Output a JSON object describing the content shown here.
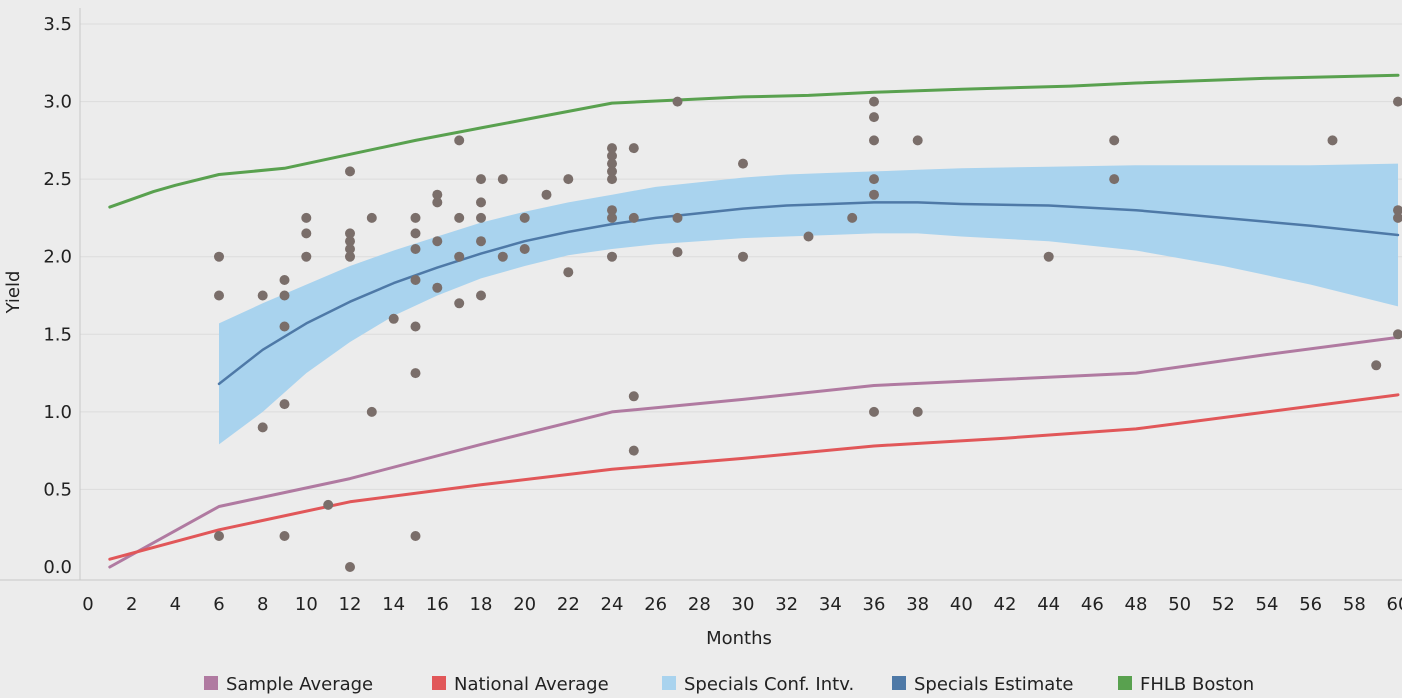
{
  "chart_data": {
    "type": "line",
    "xlabel": "Months",
    "ylabel": "Yield",
    "xlim": [
      0,
      60
    ],
    "ylim": [
      0,
      3.5
    ],
    "x_ticks": [
      "0",
      "2",
      "4",
      "6",
      "8",
      "10",
      "12",
      "14",
      "16",
      "18",
      "20",
      "22",
      "24",
      "26",
      "28",
      "30",
      "32",
      "34",
      "36",
      "38",
      "40",
      "42",
      "44",
      "46",
      "48",
      "50",
      "52",
      "54",
      "56",
      "58",
      "60"
    ],
    "y_ticks": [
      "0.0",
      "0.5",
      "1.0",
      "1.5",
      "2.0",
      "2.5",
      "3.0",
      "3.5"
    ],
    "grid": true,
    "legend_position": "bottom",
    "colors": {
      "sample": "#b07aa1",
      "national": "#e15759",
      "conf": "#a9d3ee",
      "estimate": "#4e79a7",
      "fhlb": "#59a14f",
      "points": "#7a6e6a"
    },
    "legend": [
      {
        "label": "Sample Average",
        "color": "#b07aa1"
      },
      {
        "label": "National Average",
        "color": "#e15759"
      },
      {
        "label": "Specials Conf. Intv.",
        "color": "#a9d3ee"
      },
      {
        "label": "Specials Estimate",
        "color": "#4e79a7"
      },
      {
        "label": "FHLB Boston",
        "color": "#59a14f"
      }
    ],
    "series": [
      {
        "key": "fhlb",
        "x": [
          1,
          3,
          4,
          6,
          9,
          12,
          15,
          18,
          21,
          24,
          27,
          30,
          33,
          36,
          40,
          45,
          48,
          54,
          60
        ],
        "y": [
          2.32,
          2.42,
          2.46,
          2.53,
          2.57,
          2.66,
          2.75,
          2.83,
          2.91,
          2.99,
          3.01,
          3.03,
          3.04,
          3.06,
          3.08,
          3.1,
          3.12,
          3.15,
          3.17
        ]
      },
      {
        "key": "estimate",
        "x": [
          6,
          8,
          10,
          12,
          14,
          16,
          18,
          20,
          22,
          24,
          26,
          28,
          30,
          32,
          34,
          36,
          38,
          40,
          44,
          48,
          52,
          56,
          60
        ],
        "y": [
          1.18,
          1.4,
          1.57,
          1.71,
          1.83,
          1.93,
          2.02,
          2.1,
          2.16,
          2.21,
          2.25,
          2.28,
          2.31,
          2.33,
          2.34,
          2.35,
          2.35,
          2.34,
          2.33,
          2.3,
          2.25,
          2.2,
          2.14
        ]
      },
      {
        "key": "sample",
        "x": [
          1,
          6,
          12,
          18,
          24,
          30,
          36,
          42,
          48,
          54,
          60
        ],
        "y": [
          0.0,
          0.39,
          0.57,
          0.79,
          1.0,
          1.08,
          1.17,
          1.21,
          1.25,
          1.37,
          1.48
        ]
      },
      {
        "key": "national",
        "x": [
          1,
          6,
          12,
          18,
          24,
          30,
          36,
          42,
          48,
          54,
          60
        ],
        "y": [
          0.05,
          0.24,
          0.42,
          0.53,
          0.63,
          0.7,
          0.78,
          0.83,
          0.89,
          1.0,
          1.11
        ]
      }
    ],
    "conf_band": {
      "x": [
        6,
        8,
        10,
        12,
        14,
        16,
        18,
        20,
        22,
        24,
        26,
        28,
        30,
        32,
        34,
        36,
        38,
        40,
        44,
        48,
        52,
        56,
        60
      ],
      "upper": [
        1.57,
        1.7,
        1.82,
        1.94,
        2.04,
        2.13,
        2.22,
        2.29,
        2.35,
        2.4,
        2.45,
        2.48,
        2.51,
        2.53,
        2.54,
        2.55,
        2.56,
        2.57,
        2.58,
        2.59,
        2.59,
        2.59,
        2.6
      ],
      "lower": [
        0.79,
        1.0,
        1.25,
        1.45,
        1.62,
        1.75,
        1.86,
        1.94,
        2.01,
        2.05,
        2.08,
        2.1,
        2.12,
        2.13,
        2.14,
        2.15,
        2.15,
        2.13,
        2.1,
        2.04,
        1.94,
        1.82,
        1.68
      ]
    },
    "points": [
      [
        6,
        2.0
      ],
      [
        6,
        1.75
      ],
      [
        6,
        0.2
      ],
      [
        8,
        1.75
      ],
      [
        8,
        0.9
      ],
      [
        9,
        1.85
      ],
      [
        9,
        1.75
      ],
      [
        9,
        1.55
      ],
      [
        9,
        1.05
      ],
      [
        9,
        0.2
      ],
      [
        10,
        2.25
      ],
      [
        10,
        2.15
      ],
      [
        10,
        2.0
      ],
      [
        11,
        0.4
      ],
      [
        12,
        2.55
      ],
      [
        12,
        2.15
      ],
      [
        12,
        2.1
      ],
      [
        12,
        2.05
      ],
      [
        12,
        2.0
      ],
      [
        12,
        0.0
      ],
      [
        13,
        2.25
      ],
      [
        13,
        1.0
      ],
      [
        14,
        1.6
      ],
      [
        15,
        2.25
      ],
      [
        15,
        2.15
      ],
      [
        15,
        2.05
      ],
      [
        15,
        1.85
      ],
      [
        15,
        1.55
      ],
      [
        15,
        1.25
      ],
      [
        15,
        0.2
      ],
      [
        16,
        2.4
      ],
      [
        16,
        2.35
      ],
      [
        16,
        2.1
      ],
      [
        16,
        1.8
      ],
      [
        17,
        2.75
      ],
      [
        17,
        2.25
      ],
      [
        17,
        2.0
      ],
      [
        17,
        1.7
      ],
      [
        18,
        2.5
      ],
      [
        18,
        2.35
      ],
      [
        18,
        2.25
      ],
      [
        18,
        2.1
      ],
      [
        18,
        1.75
      ],
      [
        19,
        2.5
      ],
      [
        19,
        2.0
      ],
      [
        20,
        2.25
      ],
      [
        20,
        2.05
      ],
      [
        21,
        2.4
      ],
      [
        22,
        2.5
      ],
      [
        22,
        1.9
      ],
      [
        24,
        2.7
      ],
      [
        24,
        2.65
      ],
      [
        24,
        2.6
      ],
      [
        24,
        2.55
      ],
      [
        24,
        2.5
      ],
      [
        24,
        2.3
      ],
      [
        24,
        2.25
      ],
      [
        24,
        2.0
      ],
      [
        25,
        2.7
      ],
      [
        25,
        2.25
      ],
      [
        25,
        1.1
      ],
      [
        25,
        0.75
      ],
      [
        27,
        3.0
      ],
      [
        27,
        2.25
      ],
      [
        27,
        2.03
      ],
      [
        30,
        2.6
      ],
      [
        30,
        2.0
      ],
      [
        33,
        2.13
      ],
      [
        35,
        2.25
      ],
      [
        36,
        3.0
      ],
      [
        36,
        2.9
      ],
      [
        36,
        2.75
      ],
      [
        36,
        2.5
      ],
      [
        36,
        2.4
      ],
      [
        36,
        1.0
      ],
      [
        38,
        2.75
      ],
      [
        38,
        1.0
      ],
      [
        44,
        2.0
      ],
      [
        47,
        2.75
      ],
      [
        47,
        2.5
      ],
      [
        57,
        2.75
      ],
      [
        59,
        1.3
      ],
      [
        60,
        3.0
      ],
      [
        60,
        2.3
      ],
      [
        60,
        2.25
      ],
      [
        60,
        1.5
      ]
    ]
  }
}
